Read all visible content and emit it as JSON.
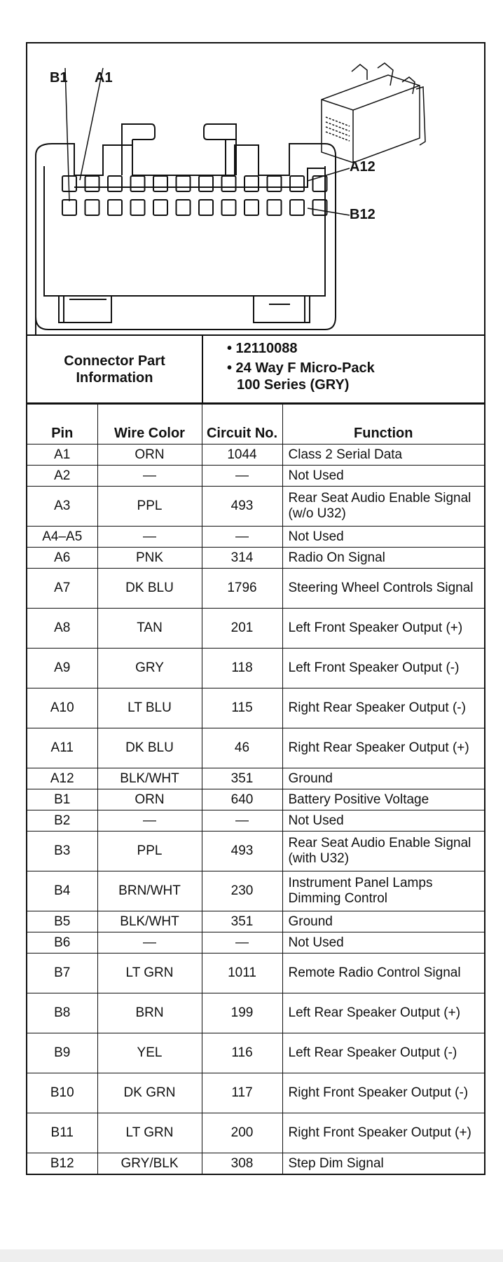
{
  "diagram": {
    "labels": {
      "b1": "B1",
      "a1": "A1",
      "a12": "A12",
      "b12": "B12"
    }
  },
  "connector_info": {
    "label": "Connector Part Information",
    "part_number": "• 12110088",
    "description_line1": "• 24 Way F Micro-Pack",
    "description_line2": "100 Series (GRY)"
  },
  "table": {
    "headers": {
      "pin": "Pin",
      "wire_color": "Wire Color",
      "circuit": "Circuit No.",
      "function": "Function"
    },
    "rows": [
      {
        "pin": "A1",
        "color": "ORN",
        "circuit": "1044",
        "function": "Class 2 Serial Data"
      },
      {
        "pin": "A2",
        "color": "—",
        "circuit": "—",
        "function": "Not Used"
      },
      {
        "pin": "A3",
        "color": "PPL",
        "circuit": "493",
        "function": "Rear Seat Audio Enable Signal (w/o U32)"
      },
      {
        "pin": "A4–A5",
        "color": "—",
        "circuit": "—",
        "function": "Not Used"
      },
      {
        "pin": "A6",
        "color": "PNK",
        "circuit": "314",
        "function": "Radio On Signal"
      },
      {
        "pin": "A7",
        "color": "DK BLU",
        "circuit": "1796",
        "function": "Steering Wheel Controls Signal"
      },
      {
        "pin": "A8",
        "color": "TAN",
        "circuit": "201",
        "function": "Left Front Speaker Output (+)"
      },
      {
        "pin": "A9",
        "color": "GRY",
        "circuit": "118",
        "function": "Left Front Speaker Output (-)"
      },
      {
        "pin": "A10",
        "color": "LT BLU",
        "circuit": "115",
        "function": "Right Rear Speaker Output (-)"
      },
      {
        "pin": "A11",
        "color": "DK BLU",
        "circuit": "46",
        "function": "Right Rear Speaker Output (+)"
      },
      {
        "pin": "A12",
        "color": "BLK/WHT",
        "circuit": "351",
        "function": "Ground"
      },
      {
        "pin": "B1",
        "color": "ORN",
        "circuit": "640",
        "function": "Battery Positive Voltage"
      },
      {
        "pin": "B2",
        "color": "—",
        "circuit": "—",
        "function": "Not Used"
      },
      {
        "pin": "B3",
        "color": "PPL",
        "circuit": "493",
        "function": "Rear Seat Audio Enable Signal (with U32)"
      },
      {
        "pin": "B4",
        "color": "BRN/WHT",
        "circuit": "230",
        "function": "Instrument Panel Lamps Dimming Control"
      },
      {
        "pin": "B5",
        "color": "BLK/WHT",
        "circuit": "351",
        "function": "Ground"
      },
      {
        "pin": "B6",
        "color": "—",
        "circuit": "—",
        "function": "Not Used"
      },
      {
        "pin": "B7",
        "color": "LT GRN",
        "circuit": "1011",
        "function": "Remote Radio Control Signal"
      },
      {
        "pin": "B8",
        "color": "BRN",
        "circuit": "199",
        "function": "Left Rear Speaker Output (+)"
      },
      {
        "pin": "B9",
        "color": "YEL",
        "circuit": "116",
        "function": "Left Rear Speaker Output (-)"
      },
      {
        "pin": "B10",
        "color": "DK GRN",
        "circuit": "117",
        "function": "Right Front Speaker Output (-)"
      },
      {
        "pin": "B11",
        "color": "LT GRN",
        "circuit": "200",
        "function": "Right Front Speaker Output (+)"
      },
      {
        "pin": "B12",
        "color": "GRY/BLK",
        "circuit": "308",
        "function": "Step Dim Signal"
      }
    ]
  }
}
